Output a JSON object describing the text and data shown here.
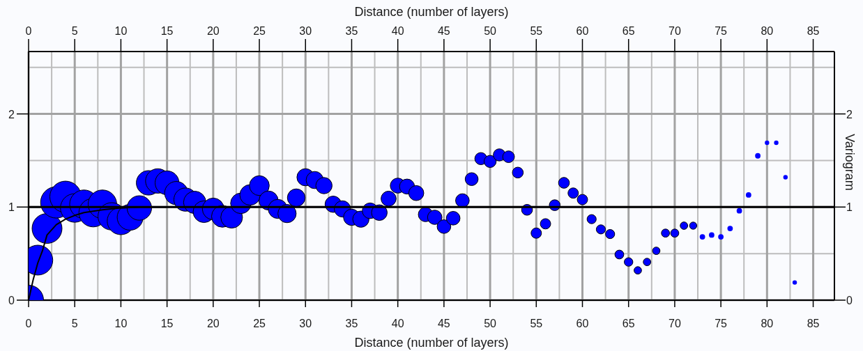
{
  "chart_data": {
    "type": "bubble",
    "xlabel": "Distance (number of layers)",
    "x2label": "Distance (number of layers)",
    "y2label": "Variogram",
    "xlim": [
      0,
      87.3
    ],
    "xticks": [
      0,
      {
        "value": 2.5,
        "label": null
      },
      5,
      {
        "value": 7.5,
        "label": null
      },
      10,
      {
        "value": 12.5,
        "label": null
      },
      15,
      {
        "value": 17.5,
        "label": null
      },
      20,
      {
        "value": 22.5,
        "label": null
      },
      25,
      {
        "value": 27.5,
        "label": null
      },
      30,
      {
        "value": 32.5,
        "label": null
      },
      35,
      {
        "value": 37.5,
        "label": null
      },
      40,
      {
        "value": 42.5,
        "label": null
      },
      45,
      {
        "value": 47.5,
        "label": null
      },
      50,
      {
        "value": 52.5,
        "label": null
      },
      55,
      {
        "value": 57.5,
        "label": null
      },
      60,
      {
        "value": 62.5,
        "label": null
      },
      65,
      {
        "value": 67.5,
        "label": null
      },
      70,
      {
        "value": 72.5,
        "label": null
      },
      75,
      {
        "value": 77.5,
        "label": null
      },
      80,
      {
        "value": 82.5,
        "label": null
      },
      85
    ],
    "x2lim": [
      0,
      87.3
    ],
    "x2ticks": [
      0,
      5,
      10,
      15,
      20,
      25,
      30,
      35,
      40,
      45,
      50,
      55,
      60,
      65,
      70,
      75,
      80,
      85
    ],
    "ylim": [
      0,
      2.67
    ],
    "yticks": [
      0,
      {
        "value": 0.5,
        "label": null
      },
      1,
      {
        "value": 1.5,
        "label": null
      },
      2,
      {
        "value": 2.5,
        "label": null
      }
    ],
    "y2lim": [
      0,
      2.67
    ],
    "y2ticks": [
      0,
      1,
      2
    ],
    "grid": true,
    "x": [
      0,
      1,
      2,
      3,
      4,
      5,
      6,
      7,
      8,
      9,
      10,
      11,
      12,
      13,
      14,
      15,
      16,
      17,
      18,
      19,
      20,
      21,
      22,
      23,
      24,
      25,
      26,
      27,
      28,
      29,
      30,
      31,
      32,
      33,
      34,
      35,
      36,
      37,
      38,
      39,
      40,
      41,
      42,
      43,
      44,
      45,
      46,
      47,
      48,
      49,
      50,
      51,
      52,
      53,
      54,
      55,
      56,
      57,
      58,
      59,
      60,
      61,
      62,
      63,
      64,
      65,
      66,
      67,
      68,
      69,
      70,
      71,
      72,
      73,
      74,
      75,
      76,
      77,
      78,
      79,
      80,
      81,
      82,
      83
    ],
    "series": [
      {
        "color": "#0000ff",
        "values": [
          0,
          0.43,
          0.77,
          1.05,
          1.11,
          0.99,
          1.03,
          0.94,
          1.03,
          0.9,
          0.85,
          0.89,
          0.99,
          1.26,
          1.28,
          1.26,
          1.15,
          1.08,
          1.05,
          0.95,
          0.98,
          0.9,
          0.89,
          1.04,
          1.13,
          1.23,
          1.07,
          0.98,
          0.93,
          1.1,
          1.32,
          1.29,
          1.23,
          1.03,
          0.98,
          0.89,
          0.87,
          0.96,
          0.94,
          1.09,
          1.23,
          1.22,
          1.15,
          0.92,
          0.89,
          0.79,
          0.88,
          1.07,
          1.3,
          1.52,
          1.49,
          1.56,
          1.54,
          1.37,
          0.97,
          0.72,
          0.82,
          1.02,
          1.26,
          1.15,
          1.08,
          0.87,
          0.76,
          0.71,
          0.49,
          0.41,
          0.32,
          0.41,
          0.53,
          0.72,
          0.72,
          0.8,
          0.8,
          0.68,
          0.7,
          0.68,
          0.77,
          0.96,
          1.13,
          1.55,
          1.69,
          1.69,
          1.32,
          0.19
        ],
        "sizes": [
          0.91,
          0.91,
          0.91,
          1,
          1,
          0.83,
          0.83,
          0.83,
          0.83,
          0.76,
          0.76,
          0.68,
          0.61,
          0.61,
          0.61,
          0.58,
          0.55,
          0.55,
          0.51,
          0.48,
          0.48,
          0.48,
          0.48,
          0.43,
          0.43,
          0.4,
          0.37,
          0.37,
          0.34,
          0.32,
          0.3,
          0.3,
          0.27,
          0.27,
          0.27,
          0.27,
          0.27,
          0.25,
          0.25,
          0.23,
          0.23,
          0.23,
          0.23,
          0.21,
          0.21,
          0.19,
          0.19,
          0.19,
          0.17,
          0.15,
          0.15,
          0.15,
          0.14,
          0.12,
          0.12,
          0.11,
          0.11,
          0.12,
          0.12,
          0.11,
          0.11,
          0.085,
          0.085,
          0.085,
          0.08,
          0.075,
          0.057,
          0.057,
          0.057,
          0.068,
          0.068,
          0.057,
          0.053,
          0.03,
          0.03,
          0.03,
          0.03,
          0.03,
          0.03,
          0.03,
          0.02,
          0.02,
          0.02,
          0.02
        ]
      },
      {
        "type": "line",
        "color": "#000000",
        "x": [
          0,
          0.5,
          1,
          1.5,
          2,
          3,
          4,
          5,
          6,
          8,
          10,
          12,
          15
        ],
        "values": [
          0,
          0.22,
          0.4,
          0.53,
          0.7,
          0.81,
          0.87,
          0.91,
          0.94,
          0.97,
          0.99,
          1,
          1
        ]
      }
    ],
    "ref_lines": [
      {
        "axis": "y",
        "value": 1,
        "color": "#000000"
      }
    ]
  }
}
